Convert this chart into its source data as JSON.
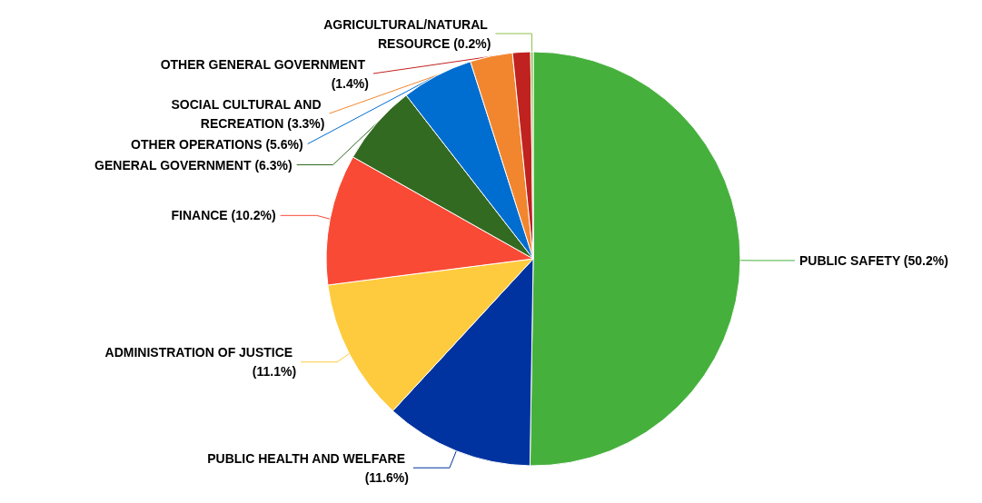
{
  "chart_data": {
    "type": "pie",
    "categories": [
      "PUBLIC SAFETY (50.2%)",
      "PUBLIC HEALTH AND WELFARE (11.6%)",
      "ADMINISTRATION OF JUSTICE (11.1%)",
      "FINANCE (10.2%)",
      "GENERAL GOVERNMENT (6.3%)",
      "OTHER OPERATIONS (5.6%)",
      "SOCIAL CULTURAL AND RECREATION (3.3%)",
      "OTHER GENERAL GOVERNMENT (1.4%)",
      "AGRICULTURAL/NATURAL RESOURCE (0.2%)"
    ],
    "values": [
      50.2,
      11.6,
      11.1,
      10.2,
      6.3,
      5.6,
      3.3,
      1.4,
      0.2
    ],
    "colors": [
      "#46b03d",
      "#0033a0",
      "#fecb3e",
      "#f84a35",
      "#336a21",
      "#006dd0",
      "#f2862e",
      "#c0221f",
      "#8bc34a"
    ],
    "legend": false
  }
}
